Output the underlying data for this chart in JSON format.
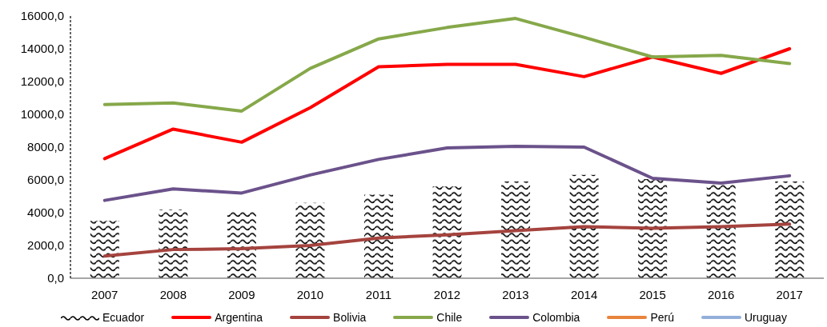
{
  "chart_data": {
    "type": "line",
    "categories": [
      "2007",
      "2008",
      "2009",
      "2010",
      "2011",
      "2012",
      "2013",
      "2014",
      "2015",
      "2016",
      "2017"
    ],
    "series": [
      {
        "name": "Ecuador",
        "type": "bar",
        "color": "#000000",
        "values": [
          3500,
          4200,
          4100,
          4600,
          5100,
          5600,
          5900,
          6300,
          6050,
          5750,
          5900
        ]
      },
      {
        "name": "Argentina",
        "color": "#ff0000",
        "values": [
          7300,
          9100,
          8300,
          10400,
          12900,
          13050,
          13050,
          12300,
          13500,
          12500,
          14000
        ]
      },
      {
        "name": "Bolivia",
        "color": "#a5433e",
        "values": [
          1350,
          1750,
          1800,
          2000,
          2450,
          2650,
          2900,
          3150,
          3050,
          3150,
          3300
        ]
      },
      {
        "name": "Chile",
        "color": "#86a84a",
        "values": [
          10600,
          10700,
          10200,
          12800,
          14600,
          15300,
          15850,
          14700,
          13500,
          13600,
          13100
        ]
      },
      {
        "name": "Colombia",
        "color": "#6b528b",
        "values": [
          4750,
          5450,
          5200,
          6300,
          7250,
          7950,
          8050,
          8000,
          6100,
          5800,
          6250
        ]
      },
      {
        "name": "Perú",
        "color": "#e8843c",
        "values": [
          null,
          null,
          null,
          null,
          null,
          null,
          null,
          null,
          null,
          null,
          null
        ]
      },
      {
        "name": "Uruguay",
        "color": "#93afd9",
        "values": [
          null,
          null,
          null,
          null,
          null,
          null,
          null,
          null,
          null,
          null,
          null
        ]
      }
    ],
    "ylim": [
      0,
      16000
    ],
    "yticks": [
      {
        "value": 0,
        "label": "0,0"
      },
      {
        "value": 2000,
        "label": "2000,0"
      },
      {
        "value": 4000,
        "label": "4000,0"
      },
      {
        "value": 6000,
        "label": "6000,0"
      },
      {
        "value": 8000,
        "label": "8000,0"
      },
      {
        "value": 10000,
        "label": "10000,0"
      },
      {
        "value": 12000,
        "label": "12000,0"
      },
      {
        "value": 14000,
        "label": "14000,0"
      },
      {
        "value": 16000,
        "label": "16000,0"
      }
    ],
    "legend": "bottom",
    "marker": "none",
    "line_style": "solid"
  }
}
